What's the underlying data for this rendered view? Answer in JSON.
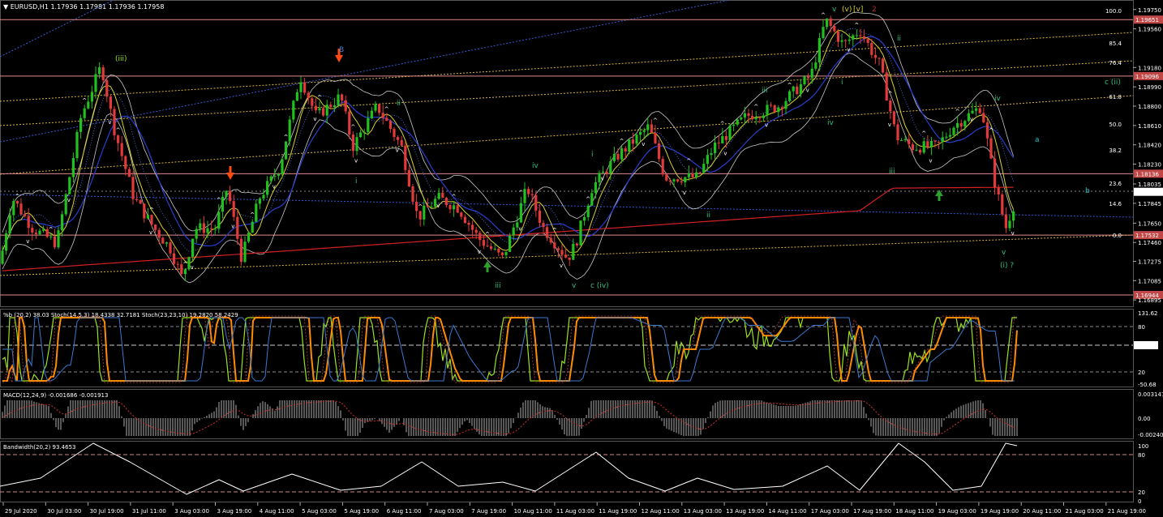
{
  "title_line": "▼ EURUSD,H1  1.17936 1.17981 1.17936 1.17958",
  "colors": {
    "background": "#000000",
    "bull": "#22c01e",
    "bear": "#e23a3a",
    "hline": "#e08a8a",
    "red_ma": "#d42020",
    "blue_ma": "#2a3fd0",
    "yellow_ma": "#d8d02a",
    "bands": "#c8c8c8",
    "fib": "#d8b840",
    "lime": "#9be21d",
    "orange": "#ff8c00",
    "wave_green": "#2ec07a",
    "wave_cyan": "#22c0c0"
  },
  "main_panel": {
    "price_axis": [
      "1.19750",
      "1.19560",
      "1.19180",
      "1.18990",
      "1.18800",
      "1.18610",
      "1.18420",
      "1.18230",
      "1.18035",
      "1.17845",
      "1.17650",
      "1.17460",
      "1.17275",
      "1.17085",
      "1.16895"
    ],
    "price_range": [
      1.1688,
      1.1978
    ],
    "highlighted_levels": [
      {
        "value": 1.19651,
        "label": "1.19651"
      },
      {
        "value": 1.19096,
        "label": "1.19096"
      },
      {
        "value": 1.18136,
        "label": "1.18136"
      },
      {
        "value": 1.17532,
        "label": "1.17532"
      },
      {
        "value": 1.16944,
        "label": "1.16944"
      }
    ],
    "current_price": {
      "value": 1.17958,
      "label": "1.17958"
    },
    "fib_labels": [
      "100.0",
      "85.4",
      "76.4",
      "61.8",
      "50.0",
      "38.2",
      "23.6",
      "14.6",
      "0.0"
    ],
    "wave_labels": [
      "(iii)",
      "B",
      "i",
      "ii",
      "iii",
      "iv",
      "v",
      "c (iv)",
      "i",
      "ii",
      "iii",
      "iv",
      "v",
      "(v)",
      "[v]",
      "2",
      "i",
      "ii",
      "iii",
      "iv",
      "v",
      "(i) ?",
      "c (ii)",
      "a",
      "b"
    ]
  },
  "chart_data": {
    "type": "candlestick",
    "symbol": "EURUSD",
    "timeframe": "H1",
    "ohlc_last": {
      "open": 1.17936,
      "high": 1.17981,
      "low": 1.17936,
      "close": 1.17958
    },
    "x_ticks": [
      "29 Jul 2020",
      "30 Jul 03:00",
      "30 Jul 19:00",
      "31 Jul 11:00",
      "3 Aug 03:00",
      "3 Aug 19:00",
      "4 Aug 11:00",
      "5 Aug 03:00",
      "5 Aug 19:00",
      "6 Aug 11:00",
      "7 Aug 03:00",
      "7 Aug 19:00",
      "10 Aug 11:00",
      "11 Aug 03:00",
      "11 Aug 19:00",
      "12 Aug 11:00",
      "13 Aug 03:00",
      "13 Aug 19:00",
      "14 Aug 11:00",
      "17 Aug 03:00",
      "17 Aug 19:00",
      "18 Aug 11:00",
      "19 Aug 03:00",
      "19 Aug 19:00",
      "20 Aug 11:00",
      "21 Aug 03:00",
      "21 Aug 19:00"
    ],
    "price_anchors": [
      [
        0,
        1.1725
      ],
      [
        15,
        1.179
      ],
      [
        40,
        1.176
      ],
      [
        70,
        1.1745
      ],
      [
        100,
        1.187
      ],
      [
        125,
        1.192
      ],
      [
        140,
        1.186
      ],
      [
        165,
        1.179
      ],
      [
        190,
        1.176
      ],
      [
        210,
        1.174
      ],
      [
        225,
        1.171
      ],
      [
        240,
        1.176
      ],
      [
        265,
        1.176
      ],
      [
        280,
        1.18
      ],
      [
        298,
        1.173
      ],
      [
        320,
        1.179
      ],
      [
        345,
        1.182
      ],
      [
        370,
        1.191
      ],
      [
        390,
        1.187
      ],
      [
        420,
        1.189
      ],
      [
        435,
        1.184
      ],
      [
        465,
        1.188
      ],
      [
        495,
        1.184
      ],
      [
        515,
        1.177
      ],
      [
        540,
        1.179
      ],
      [
        565,
        1.178
      ],
      [
        590,
        1.175
      ],
      [
        620,
        1.173
      ],
      [
        650,
        1.18
      ],
      [
        670,
        1.176
      ],
      [
        700,
        1.173
      ],
      [
        710,
        1.1745
      ],
      [
        730,
        1.18
      ],
      [
        760,
        1.183
      ],
      [
        800,
        1.186
      ],
      [
        820,
        1.181
      ],
      [
        860,
        1.181
      ],
      [
        880,
        1.184
      ],
      [
        920,
        1.187
      ],
      [
        960,
        1.188
      ],
      [
        1000,
        1.191
      ],
      [
        1018,
        1.1965
      ],
      [
        1040,
        1.194
      ],
      [
        1060,
        1.1955
      ],
      [
        1085,
        1.192
      ],
      [
        1105,
        1.185
      ],
      [
        1125,
        1.184
      ],
      [
        1155,
        1.184
      ],
      [
        1175,
        1.186
      ],
      [
        1210,
        1.188
      ],
      [
        1225,
        1.181
      ],
      [
        1240,
        1.176
      ],
      [
        1255,
        1.1795
      ]
    ],
    "indicators": [
      {
        "name": "%b (20,2) 38.03  Stoch(14,5,3) 18.4338 32.7181  Stoch(23,23,10) 19.2820 58.2429",
        "axis": [
          "131.62",
          "80",
          "50.51",
          "20",
          "-50.68"
        ]
      },
      {
        "name": "MACD(12,24,9) -0.001686 -0.001913",
        "axis": [
          "0.003147",
          "0.00",
          "-0.002407"
        ]
      },
      {
        "name": "Bandwidth(20,2) 93.4653",
        "axis": [
          "100",
          "80",
          "20",
          "0"
        ]
      }
    ]
  }
}
